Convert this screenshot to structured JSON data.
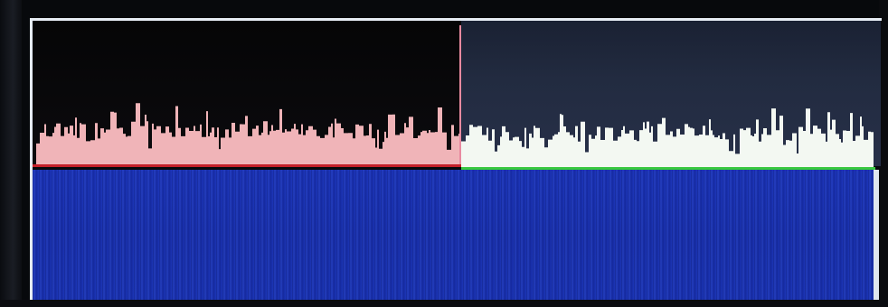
{
  "display": {
    "spectrum": {
      "left_segment_color": "#f0b4b8",
      "right_segment_color": "#f3f8f2",
      "left_background": "#0a0a0c",
      "right_background": "#222b40",
      "baseline_left_color": "#c4202a",
      "baseline_right_color": "#38c840",
      "divider_color": "#e88aa0"
    },
    "waterfall": {
      "background_color": "#1b35b3"
    },
    "frame_color": "#e6ecf4"
  }
}
